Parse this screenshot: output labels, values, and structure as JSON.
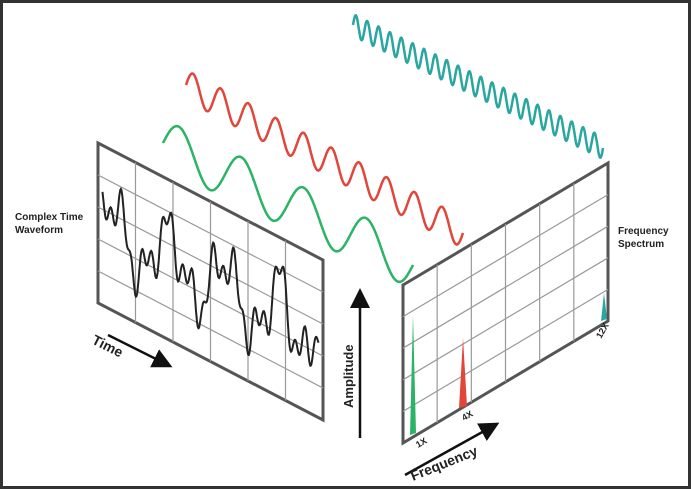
{
  "labels": {
    "time_waveform": "Complex Time Waveform",
    "spectrum": "Frequency Spectrum",
    "time": "Time",
    "amplitude": "Amplitude",
    "frequency": "Frequency"
  },
  "peaks": [
    "1X",
    "4X",
    "12X"
  ]
}
